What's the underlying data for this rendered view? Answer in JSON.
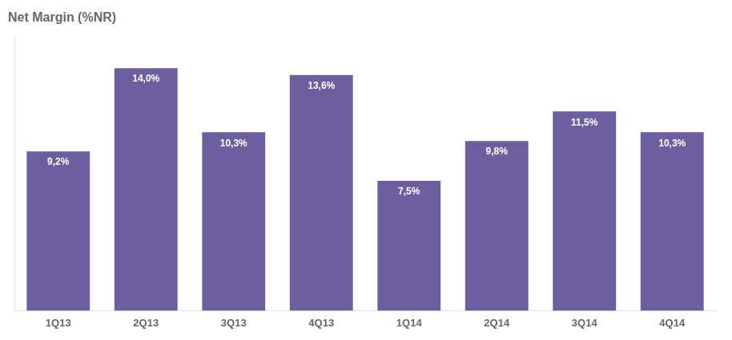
{
  "chart_data": {
    "type": "bar",
    "title": "Net Margin (%NR)",
    "categories": [
      "1Q13",
      "2Q13",
      "3Q13",
      "4Q13",
      "1Q14",
      "2Q14",
      "3Q14",
      "4Q14"
    ],
    "values": [
      9.2,
      14.0,
      10.3,
      13.6,
      7.5,
      9.8,
      11.5,
      10.3
    ],
    "value_labels": [
      "9,2%",
      "14,0%",
      "10,3%",
      "13,6%",
      "7,5%",
      "9,8%",
      "11,5%",
      "10,3%"
    ],
    "color": "#6B5FA0",
    "ylim": [
      0,
      15.8
    ],
    "grid": false,
    "data_labels": true,
    "tick_labels": "x"
  }
}
